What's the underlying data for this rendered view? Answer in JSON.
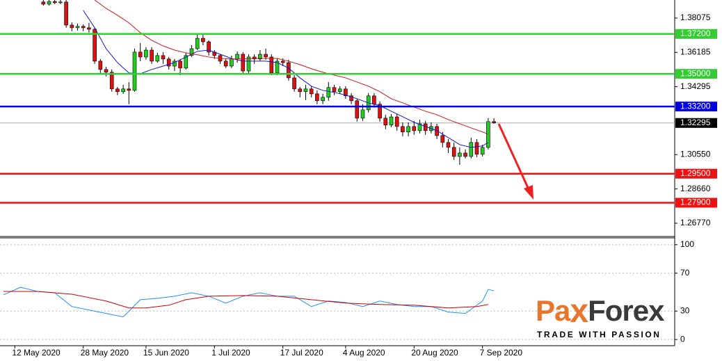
{
  "chart_data": [
    {
      "type": "candlestick",
      "xlim": [
        -7.6,
        110.7
      ],
      "ylim": [
        1.2604,
        1.3907
      ],
      "yticks": [
        {
          "value": 1.38075,
          "label": "1.38075"
        },
        {
          "value": 1.36185,
          "label": "1.36185"
        },
        {
          "value": 1.34295,
          "label": "1.34295"
        },
        {
          "value": 1.3055,
          "label": "1.30550"
        },
        {
          "value": 1.2866,
          "label": "1.28660"
        },
        {
          "value": 1.2677,
          "label": "1.26770"
        }
      ],
      "xticks": [
        {
          "value": -5,
          "label": "12 May 2020"
        },
        {
          "value": 7,
          "label": "28 May 2020"
        },
        {
          "value": 18,
          "label": "15 Jun 2020"
        },
        {
          "value": 30,
          "label": "1 Jul 2020"
        },
        {
          "value": 42,
          "label": "17 Jul 2020"
        },
        {
          "value": 53,
          "label": "4 Aug 2020"
        },
        {
          "value": 65,
          "label": "20 Aug 2020"
        },
        {
          "value": 77,
          "label": "7 Sep 2020"
        }
      ],
      "up_color": "#22cc22",
      "down_color": "#dd1111",
      "candles": [
        [
          1.3896,
          1.3907,
          1.3876,
          1.3884
        ],
        [
          1.3884,
          1.3907,
          1.3876,
          1.3899
        ],
        [
          1.3899,
          1.3907,
          1.3884,
          1.3892
        ],
        [
          1.3892,
          1.3907,
          1.3884,
          1.3896
        ],
        [
          1.3896,
          1.3907,
          1.3754,
          1.3769
        ],
        [
          1.3769,
          1.3784,
          1.3735,
          1.3754
        ],
        [
          1.3754,
          1.3777,
          1.3739,
          1.3762
        ],
        [
          1.3762,
          1.3773,
          1.3735,
          1.3754
        ],
        [
          1.3754,
          1.3781,
          1.3727,
          1.3746
        ],
        [
          1.3746,
          1.3754,
          1.3555,
          1.357
        ],
        [
          1.357,
          1.3582,
          1.3505,
          1.3524
        ],
        [
          1.3524,
          1.3539,
          1.3486,
          1.3509
        ],
        [
          1.3509,
          1.3524,
          1.3402,
          1.3417
        ],
        [
          1.3417,
          1.3428,
          1.3383,
          1.3402
        ],
        [
          1.3402,
          1.344,
          1.339,
          1.3417
        ],
        [
          1.3417,
          1.3455,
          1.3333,
          1.3409
        ],
        [
          1.3409,
          1.3639,
          1.3402,
          1.362
        ],
        [
          1.362,
          1.367,
          1.357,
          1.3593
        ],
        [
          1.3593,
          1.3647,
          1.3578,
          1.3631
        ],
        [
          1.3631,
          1.3647,
          1.3555,
          1.357
        ],
        [
          1.357,
          1.3616,
          1.3562,
          1.3601
        ],
        [
          1.3601,
          1.362,
          1.3555,
          1.3582
        ],
        [
          1.3582,
          1.3593,
          1.3524,
          1.3543
        ],
        [
          1.3543,
          1.3582,
          1.3516,
          1.357
        ],
        [
          1.357,
          1.3582,
          1.3493,
          1.3532
        ],
        [
          1.3532,
          1.3616,
          1.3524,
          1.3601
        ],
        [
          1.3601,
          1.3658,
          1.3593,
          1.3639
        ],
        [
          1.3639,
          1.3716,
          1.3631,
          1.3696
        ],
        [
          1.3696,
          1.3716,
          1.3658,
          1.3677
        ],
        [
          1.3677,
          1.3685,
          1.3601,
          1.362
        ],
        [
          1.362,
          1.3631,
          1.3582,
          1.3601
        ],
        [
          1.3601,
          1.3608,
          1.3555,
          1.357
        ],
        [
          1.357,
          1.3582,
          1.3532,
          1.3543
        ],
        [
          1.3543,
          1.3601,
          1.3532,
          1.3582
        ],
        [
          1.3582,
          1.3624,
          1.3562,
          1.3608
        ],
        [
          1.3608,
          1.362,
          1.3501,
          1.3516
        ],
        [
          1.3516,
          1.3608,
          1.3501,
          1.3593
        ],
        [
          1.3593,
          1.3608,
          1.3555,
          1.3582
        ],
        [
          1.3582,
          1.3631,
          1.357,
          1.3608
        ],
        [
          1.3608,
          1.3639,
          1.3578,
          1.3593
        ],
        [
          1.3593,
          1.3608,
          1.3493,
          1.3505
        ],
        [
          1.3505,
          1.3585,
          1.3493,
          1.357
        ],
        [
          1.357,
          1.3585,
          1.3543,
          1.3562
        ],
        [
          1.3562,
          1.3578,
          1.3463,
          1.3478
        ],
        [
          1.3478,
          1.3493,
          1.3402,
          1.3417
        ],
        [
          1.3417,
          1.3428,
          1.3371,
          1.3402
        ],
        [
          1.3402,
          1.344,
          1.3356,
          1.3417
        ],
        [
          1.3417,
          1.3432,
          1.3371,
          1.339
        ],
        [
          1.339,
          1.3409,
          1.3333,
          1.3352
        ],
        [
          1.3352,
          1.339,
          1.3333,
          1.3371
        ],
        [
          1.3371,
          1.3455,
          1.3352,
          1.3425
        ],
        [
          1.3425,
          1.344,
          1.3383,
          1.3402
        ],
        [
          1.3402,
          1.3432,
          1.339,
          1.3417
        ],
        [
          1.3417,
          1.3432,
          1.3363,
          1.3379
        ],
        [
          1.3379,
          1.3394,
          1.3333,
          1.3352
        ],
        [
          1.3352,
          1.3363,
          1.3237,
          1.3256
        ],
        [
          1.3256,
          1.3333,
          1.3241,
          1.3302
        ],
        [
          1.3302,
          1.3394,
          1.3287,
          1.3379
        ],
        [
          1.3379,
          1.3394,
          1.3314,
          1.3333
        ],
        [
          1.3333,
          1.3348,
          1.3237,
          1.3256
        ],
        [
          1.3256,
          1.3275,
          1.3195,
          1.3218
        ],
        [
          1.3218,
          1.3279,
          1.3206,
          1.3263
        ],
        [
          1.3263,
          1.3279,
          1.3187,
          1.321
        ],
        [
          1.321,
          1.3233,
          1.3156,
          1.318
        ],
        [
          1.318,
          1.3233,
          1.3156,
          1.321
        ],
        [
          1.321,
          1.3241,
          1.3164,
          1.3187
        ],
        [
          1.3187,
          1.3248,
          1.3172,
          1.3225
        ],
        [
          1.3225,
          1.3241,
          1.3164,
          1.3187
        ],
        [
          1.3187,
          1.3233,
          1.3172,
          1.321
        ],
        [
          1.321,
          1.3225,
          1.3141,
          1.316
        ],
        [
          1.316,
          1.318,
          1.3095,
          1.3122
        ],
        [
          1.3122,
          1.3141,
          1.3064,
          1.3095
        ],
        [
          1.3095,
          1.3122,
          1.3026,
          1.3045
        ],
        [
          1.3045,
          1.3095,
          1.2999,
          1.3064
        ],
        [
          1.3064,
          1.3084,
          1.3034,
          1.3045
        ],
        [
          1.3045,
          1.3149,
          1.3034,
          1.3122
        ],
        [
          1.3122,
          1.3141,
          1.3041,
          1.3057
        ],
        [
          1.3057,
          1.311,
          1.3045,
          1.3095
        ],
        [
          1.3095,
          1.3256,
          1.3084,
          1.3237
        ],
        [
          1.3237,
          1.3256,
          1.3225,
          1.323
        ]
      ],
      "series": [
        {
          "color": "#1515d0",
          "x": [
            7,
            9,
            11,
            13,
            15,
            17,
            19,
            21,
            23,
            25,
            27,
            29,
            31,
            33,
            35,
            37,
            39,
            41,
            43,
            45,
            47,
            49,
            51,
            53,
            55,
            57,
            59,
            61,
            63,
            65,
            67,
            69,
            71,
            73,
            75,
            77,
            78
          ],
          "values": [
            1.385,
            1.3754,
            1.3639,
            1.3562,
            1.3505,
            1.3501,
            1.3524,
            1.3543,
            1.3562,
            1.3593,
            1.3624,
            1.3631,
            1.3608,
            1.3585,
            1.357,
            1.357,
            1.357,
            1.3562,
            1.3532,
            1.3478,
            1.3432,
            1.3409,
            1.3398,
            1.3383,
            1.3363,
            1.334,
            1.3325,
            1.3294,
            1.3264,
            1.3233,
            1.321,
            1.3187,
            1.3149,
            1.311,
            1.3095,
            1.3103,
            1.3122
          ]
        },
        {
          "color": "#d01515",
          "x": [
            9,
            11,
            13,
            15,
            17,
            19,
            21,
            23,
            25,
            27,
            29,
            31,
            33,
            35,
            37,
            39,
            41,
            43,
            45,
            47,
            49,
            51,
            53,
            55,
            57,
            59,
            61,
            63,
            65,
            67,
            69,
            71,
            73,
            75,
            77,
            78
          ],
          "values": [
            1.3907,
            1.3861,
            1.3823,
            1.3781,
            1.3727,
            1.3685,
            1.3654,
            1.3631,
            1.3616,
            1.3605,
            1.3593,
            1.3585,
            1.3582,
            1.3582,
            1.3585,
            1.3585,
            1.3585,
            1.357,
            1.3551,
            1.3528,
            1.3509,
            1.3493,
            1.3478,
            1.3455,
            1.3432,
            1.3402,
            1.3363,
            1.334,
            1.3317,
            1.3294,
            1.3275,
            1.3248,
            1.3225,
            1.3202,
            1.318,
            1.3168
          ]
        }
      ],
      "levels": [
        {
          "value": 1.372,
          "label": "1.37200",
          "color": "#33cc33"
        },
        {
          "value": 1.35,
          "label": "1.35000",
          "color": "#33cc33"
        },
        {
          "value": 1.332,
          "label": "1.33200",
          "color": "#0000dd"
        },
        {
          "value": 1.295,
          "label": "1.29500",
          "color": "#ee1111"
        },
        {
          "value": 1.279,
          "label": "1.27900",
          "color": "#ee1111"
        }
      ],
      "last_price": {
        "value": 1.32295,
        "label": "1.32295"
      }
    },
    {
      "type": "line",
      "xlim": [
        -7.6,
        110.7
      ],
      "ylim": [
        -6.5,
        107.2
      ],
      "yticks": [
        0,
        30,
        70,
        100
      ],
      "series": [
        {
          "color": "#1e90ff",
          "x": [
            -7,
            -4,
            -1,
            2,
            5,
            8,
            11,
            14,
            17,
            20,
            23,
            26,
            29,
            32,
            35,
            38,
            41,
            44,
            47,
            50,
            53,
            56,
            59,
            62,
            65,
            68,
            71,
            74,
            77,
            78,
            79
          ],
          "values": [
            47.1,
            55.1,
            50.7,
            49.3,
            34.8,
            31.2,
            27.5,
            23.9,
            42.0,
            43.5,
            45.7,
            49.3,
            45.7,
            38.4,
            45.7,
            49.3,
            45.7,
            45.7,
            34.8,
            40.6,
            39.1,
            34.8,
            40.6,
            37.0,
            34.8,
            34.8,
            29.0,
            27.5,
            40.6,
            52.9,
            51.4
          ]
        },
        {
          "color": "#cc0000",
          "x": [
            -7,
            -1,
            5,
            11,
            15,
            18,
            22,
            25,
            29,
            35,
            41,
            47,
            53,
            59,
            65,
            71,
            76,
            78
          ],
          "values": [
            50.7,
            50.7,
            47.8,
            40.6,
            33.3,
            33.3,
            36.2,
            42.0,
            45.7,
            46.4,
            45.7,
            42.0,
            38.4,
            37.0,
            36.2,
            33.3,
            34.8,
            37.0
          ]
        }
      ]
    }
  ],
  "logo": {
    "parts": [
      "Pa",
      "x",
      "Forex"
    ],
    "tagline": "TRADE WITH PASSION"
  }
}
